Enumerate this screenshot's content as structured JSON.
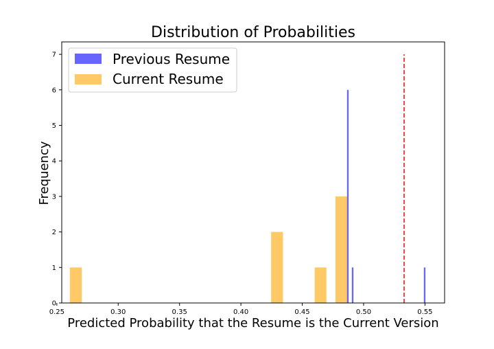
{
  "chart_data": {
    "type": "bar",
    "title": "Distribution of Probabilities",
    "xlabel": "Predicted Probability that the Resume is the Current Version",
    "ylabel": "Frequency",
    "xlim": [
      0.254,
      0.566
    ],
    "ylim": [
      0,
      7.35
    ],
    "xticks": [
      0.25,
      0.3,
      0.35,
      0.4,
      0.45,
      0.5,
      0.55
    ],
    "xtick_labels": [
      "0.25",
      "0.30",
      "0.35",
      "0.40",
      "0.45",
      "0.50",
      "0.55"
    ],
    "yticks": [
      0,
      1,
      2,
      3,
      4,
      5,
      6,
      7
    ],
    "ytick_labels": [
      "0",
      "1",
      "2",
      "3",
      "4",
      "5",
      "6",
      "7"
    ],
    "grid": false,
    "legend_position": "top-left",
    "series": [
      {
        "name": "Previous Resume",
        "color": "#0000ff",
        "opacity": 0.6,
        "bins": [
          {
            "x0": 0.4865,
            "x1": 0.4878,
            "count": 6
          },
          {
            "x0": 0.4904,
            "x1": 0.4917,
            "count": 1
          },
          {
            "x0": 0.5491,
            "x1": 0.5504,
            "count": 1
          }
        ]
      },
      {
        "name": "Current Resume",
        "color": "#ffa500",
        "opacity": 0.6,
        "bins": [
          {
            "x0": 0.2606,
            "x1": 0.2703,
            "count": 1
          },
          {
            "x0": 0.4246,
            "x1": 0.4343,
            "count": 2
          },
          {
            "x0": 0.4601,
            "x1": 0.4697,
            "count": 1
          },
          {
            "x0": 0.477,
            "x1": 0.4866,
            "count": 3
          }
        ]
      }
    ],
    "reference_line": {
      "x": 0.533,
      "y_top": 7,
      "color": "#ff0000",
      "style": "dashed"
    }
  }
}
